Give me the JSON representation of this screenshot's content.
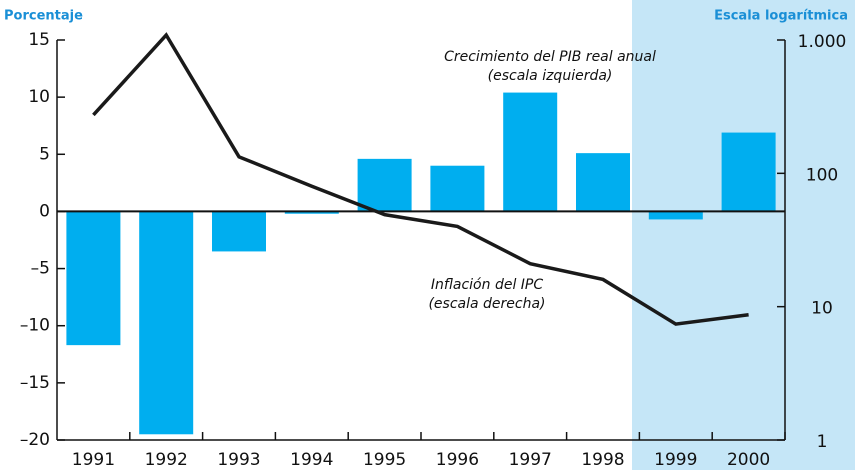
{
  "chart_data": {
    "type": "bar_line",
    "left_axis_label": "Porcentaje",
    "right_axis_label": "Escala logarítmica",
    "annotations": [
      {
        "lines": [
          "Crecimiento del PIB real anual",
          "(escala izquierda)"
        ]
      },
      {
        "lines": [
          "Inflación del IPC",
          "(escala derecha)"
        ]
      }
    ],
    "categories": [
      "1991",
      "1992",
      "1993",
      "1994",
      "1995",
      "1996",
      "1997",
      "1998",
      "1999",
      "2000"
    ],
    "series": [
      {
        "name": "Crecimiento del PIB real anual",
        "color": "#00aeef",
        "kind": "bar",
        "axis": "y",
        "values": [
          -11.7,
          -19.5,
          -3.5,
          -0.2,
          4.6,
          4.0,
          10.4,
          5.1,
          -0.7,
          6.9
        ]
      },
      {
        "name": "Inflación del IPC",
        "color": "#1a1a1a",
        "kind": "line",
        "axis": "y2",
        "values": [
          274,
          1090,
          133,
          80,
          49,
          40,
          21,
          16,
          7.4,
          8.7
        ]
      }
    ],
    "ylim": [
      -20,
      15
    ],
    "yticks": [
      {
        "value": -20,
        "label": "–20"
      },
      {
        "value": -15,
        "label": "–15"
      },
      {
        "value": -10,
        "label": "–10"
      },
      {
        "value": -5,
        "label": "–5"
      },
      0,
      5,
      10,
      15
    ],
    "y2lim": [
      1,
      1000
    ],
    "y2log": true,
    "y2ticks": [
      1,
      10,
      100,
      {
        "value": 1000,
        "label": "1.000"
      }
    ],
    "panel_color": "#c5e6f7"
  }
}
